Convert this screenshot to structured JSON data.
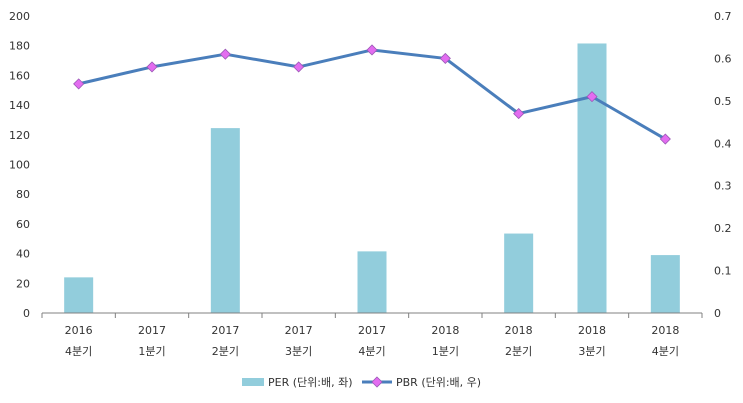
{
  "chart_data": {
    "type": "bar+line",
    "categories": [
      [
        "2016",
        "4분기"
      ],
      [
        "2017",
        "1분기"
      ],
      [
        "2017",
        "2분기"
      ],
      [
        "2017",
        "3분기"
      ],
      [
        "2017",
        "4분기"
      ],
      [
        "2018",
        "1분기"
      ],
      [
        "2018",
        "2분기"
      ],
      [
        "2018",
        "3분기"
      ],
      [
        "2018",
        "4분기"
      ]
    ],
    "series": [
      {
        "name": "PER (단위:배, 좌)",
        "type": "bar",
        "axis": "left",
        "color": "#92cddc",
        "values": [
          24,
          null,
          124.5,
          null,
          41.5,
          null,
          53.5,
          181.5,
          39
        ]
      },
      {
        "name": "PBR (단위:배, 우)",
        "type": "line",
        "axis": "right",
        "color": "#4a7ebb",
        "marker_color": "#e36cf0",
        "values": [
          0.54,
          0.58,
          0.61,
          0.58,
          0.62,
          0.6,
          0.47,
          0.51,
          0.41
        ]
      }
    ],
    "y_left": {
      "min": 0,
      "max": 200,
      "ticks": [
        0,
        20,
        40,
        60,
        80,
        100,
        120,
        140,
        160,
        180,
        200
      ]
    },
    "y_right": {
      "min": 0,
      "max": 0.7,
      "ticks": [
        "0",
        "0.1",
        "0.2",
        "0.3",
        "0.4",
        "0.5",
        "0.6",
        "0.7"
      ]
    },
    "legend_position": "bottom",
    "grid": false
  }
}
